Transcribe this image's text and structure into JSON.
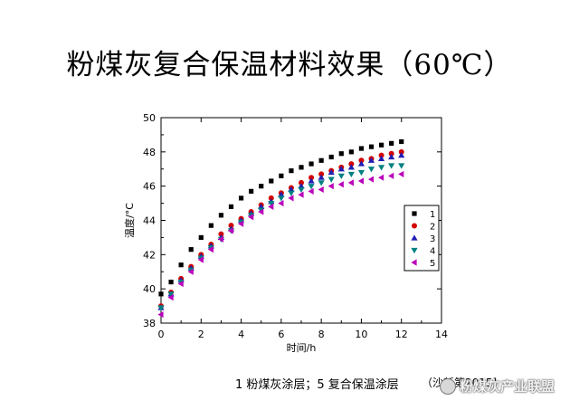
{
  "slide": {
    "title": "粉煤灰复合保温材料效果（60℃）",
    "caption": "1 粉煤灰涂层；5 复合保温涂层",
    "source": "（沙新第2015]",
    "watermark": "粉煤灰产业联盟"
  },
  "chart_data": {
    "type": "scatter",
    "title": "",
    "xlabel": "时间/h",
    "ylabel": "温度/°C",
    "xlim": [
      0,
      14
    ],
    "ylim": [
      38,
      50
    ],
    "xticks": [
      0,
      2,
      4,
      6,
      8,
      10,
      12,
      14
    ],
    "yticks": [
      38,
      40,
      42,
      44,
      46,
      48,
      50
    ],
    "grid": false,
    "legend_position": "right",
    "x": [
      0,
      0.5,
      1,
      1.5,
      2,
      2.5,
      3,
      3.5,
      4,
      4.5,
      5,
      5.5,
      6,
      6.5,
      7,
      7.5,
      8,
      8.5,
      9,
      9.5,
      10,
      10.5,
      11,
      11.5,
      12
    ],
    "series": [
      {
        "name": "1",
        "marker": "square",
        "color": "#000000",
        "values": [
          39.7,
          40.4,
          41.4,
          42.3,
          43.0,
          43.7,
          44.3,
          44.8,
          45.3,
          45.7,
          46.0,
          46.3,
          46.6,
          46.9,
          47.1,
          47.3,
          47.5,
          47.7,
          47.9,
          48.0,
          48.2,
          48.3,
          48.4,
          48.5,
          48.6
        ]
      },
      {
        "name": "2",
        "marker": "circle",
        "color": "#d40000",
        "values": [
          39.0,
          39.8,
          40.6,
          41.3,
          42.0,
          42.6,
          43.2,
          43.7,
          44.1,
          44.5,
          44.9,
          45.3,
          45.6,
          45.9,
          46.2,
          46.5,
          46.7,
          46.9,
          47.1,
          47.3,
          47.5,
          47.6,
          47.8,
          47.9,
          48.0
        ]
      },
      {
        "name": "3",
        "marker": "triangle-up",
        "color": "#1f1fb4",
        "values": [
          38.9,
          39.7,
          40.5,
          41.2,
          41.9,
          42.5,
          43.0,
          43.5,
          44.0,
          44.4,
          44.8,
          45.1,
          45.5,
          45.8,
          46.0,
          46.3,
          46.5,
          46.8,
          47.0,
          47.1,
          47.3,
          47.5,
          47.6,
          47.7,
          47.8
        ]
      },
      {
        "name": "4",
        "marker": "triangle-down",
        "color": "#008080",
        "values": [
          38.9,
          39.7,
          40.4,
          41.1,
          41.8,
          42.4,
          42.9,
          43.4,
          43.9,
          44.3,
          44.6,
          45.0,
          45.3,
          45.6,
          45.8,
          46.0,
          46.2,
          46.4,
          46.6,
          46.7,
          46.8,
          47.0,
          47.1,
          47.2,
          47.2
        ]
      },
      {
        "name": "5",
        "marker": "triangle-left",
        "color": "#bb00bb",
        "values": [
          38.5,
          39.5,
          40.3,
          41.0,
          41.7,
          42.3,
          42.9,
          43.4,
          43.8,
          44.2,
          44.5,
          44.8,
          45.0,
          45.3,
          45.5,
          45.7,
          45.8,
          46.0,
          46.1,
          46.2,
          46.3,
          46.4,
          46.5,
          46.6,
          46.7
        ]
      }
    ]
  }
}
